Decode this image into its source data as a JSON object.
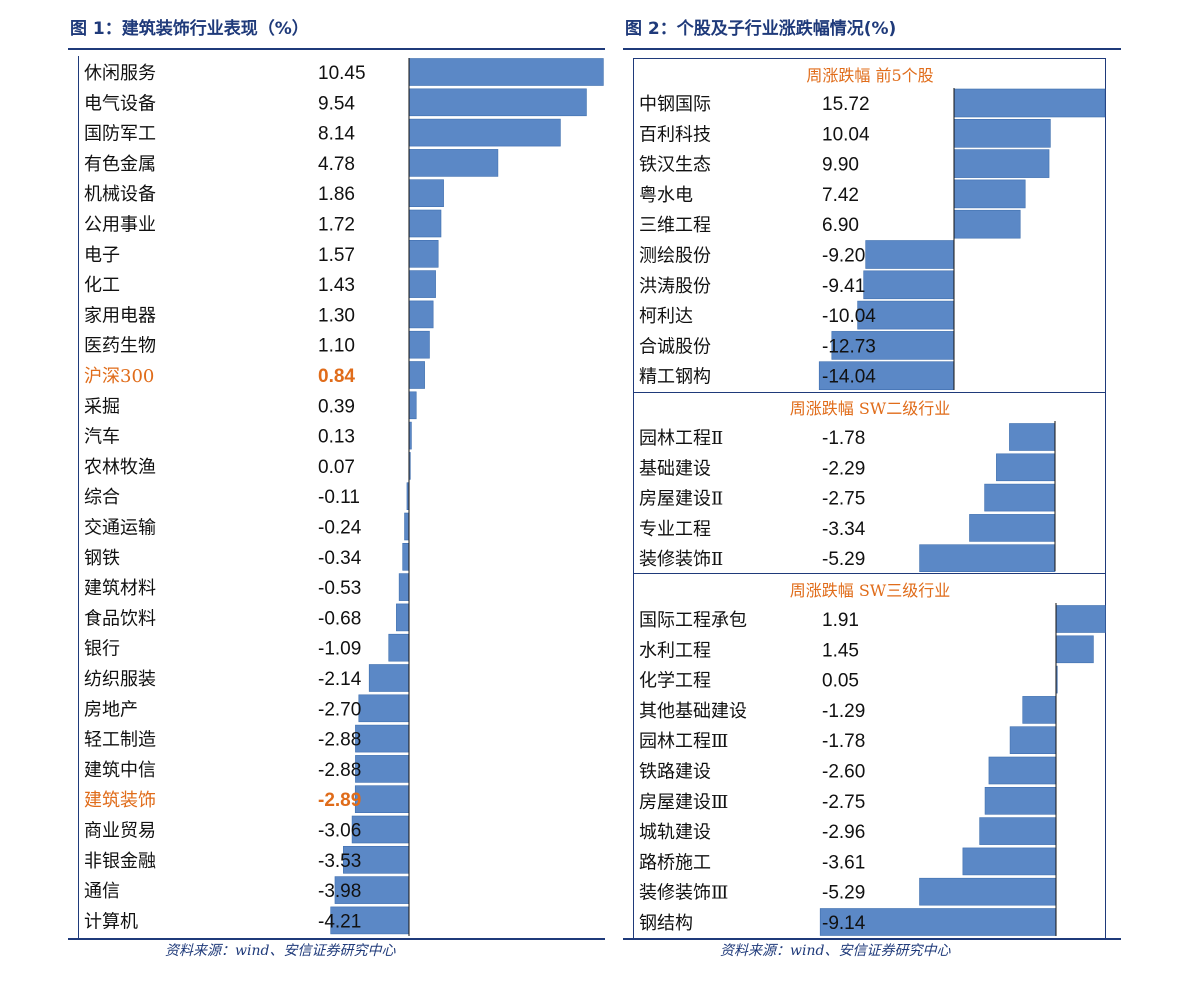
{
  "colors": {
    "bar": "#5b88c6",
    "bar_stroke": "#3f6fae",
    "highlight": "#e06c1a",
    "frame": "#1f3a7a"
  },
  "left": {
    "title": "图 1：建筑装饰行业表现（%）",
    "source": "资料来源：wind、安信证券研究中心"
  },
  "right": {
    "title": "图 2：个股及子行业涨跌幅情况(%)",
    "source": "资料来源：wind、安信证券研究中心"
  },
  "chart_data": [
    {
      "type": "bar",
      "orientation": "horizontal",
      "title": "图 1：建筑装饰行业表现（%）",
      "highlighted_categories": [
        "沪深300",
        "建筑装饰"
      ],
      "categories": [
        "休闲服务",
        "电气设备",
        "国防军工",
        "有色金属",
        "机械设备",
        "公用事业",
        "电子",
        "化工",
        "家用电器",
        "医药生物",
        "沪深300",
        "采掘",
        "汽车",
        "农林牧渔",
        "综合",
        "交通运输",
        "钢铁",
        "建筑材料",
        "食品饮料",
        "银行",
        "纺织服装",
        "房地产",
        "轻工制造",
        "建筑中信",
        "建筑装饰",
        "商业贸易",
        "非银金融",
        "通信",
        "计算机"
      ],
      "values": [
        10.45,
        9.54,
        8.14,
        4.78,
        1.86,
        1.72,
        1.57,
        1.43,
        1.3,
        1.1,
        0.84,
        0.39,
        0.13,
        0.07,
        -0.11,
        -0.24,
        -0.34,
        -0.53,
        -0.68,
        -1.09,
        -2.14,
        -2.7,
        -2.88,
        -2.88,
        -2.89,
        -3.06,
        -3.53,
        -3.98,
        -4.21
      ],
      "labels": [
        "10.45",
        "9.54",
        "8.14",
        "4.78",
        "1.86",
        "1.72",
        "1.57",
        "1.43",
        "1.30",
        "1.10",
        "0.84",
        "0.39",
        "0.13",
        "0.07",
        "-0.11",
        "-0.24",
        "-0.34",
        "-0.53",
        "-0.68",
        "-1.09",
        "-2.14",
        "-2.70",
        "-2.88",
        "-2.88",
        "-2.89",
        "-3.06",
        "-3.53",
        "-3.98",
        "-4.21"
      ]
    },
    {
      "type": "bar",
      "orientation": "horizontal",
      "title": "周涨跌幅  前5个股",
      "categories": [
        "中钢国际",
        "百利科技",
        "铁汉生态",
        "粤水电",
        "三维工程",
        "测绘股份",
        "洪涛股份",
        "柯利达",
        "合诚股份",
        "精工钢构"
      ],
      "values": [
        15.72,
        10.04,
        9.9,
        7.42,
        6.9,
        -9.2,
        -9.41,
        -10.04,
        -12.73,
        -14.04
      ],
      "labels": [
        "15.72",
        "10.04",
        "9.90",
        "7.42",
        "6.90",
        "-9.20",
        "-9.41",
        "-10.04",
        "-12.73",
        "-14.04"
      ]
    },
    {
      "type": "bar",
      "orientation": "horizontal",
      "title": "周涨跌幅  SW二级行业",
      "categories": [
        "园林工程Ⅱ",
        "基础建设",
        "房屋建设Ⅱ",
        "专业工程",
        "装修装饰Ⅱ"
      ],
      "values": [
        -1.78,
        -2.29,
        -2.75,
        -3.34,
        -5.29
      ],
      "labels": [
        "-1.78",
        "-2.29",
        "-2.75",
        "-3.34",
        "-5.29"
      ]
    },
    {
      "type": "bar",
      "orientation": "horizontal",
      "title": "周涨跌幅  SW三级行业",
      "categories": [
        "国际工程承包",
        "水利工程",
        "化学工程",
        "其他基础建设",
        "园林工程Ⅲ",
        "铁路建设",
        "房屋建设Ⅲ",
        "城轨建设",
        "路桥施工",
        "装修装饰Ⅲ",
        "钢结构"
      ],
      "values": [
        1.91,
        1.45,
        0.05,
        -1.29,
        -1.78,
        -2.6,
        -2.75,
        -2.96,
        -3.61,
        -5.29,
        -9.14
      ],
      "labels": [
        "1.91",
        "1.45",
        "0.05",
        "-1.29",
        "-1.78",
        "-2.60",
        "-2.75",
        "-2.96",
        "-3.61",
        "-5.29",
        "-9.14"
      ]
    }
  ]
}
